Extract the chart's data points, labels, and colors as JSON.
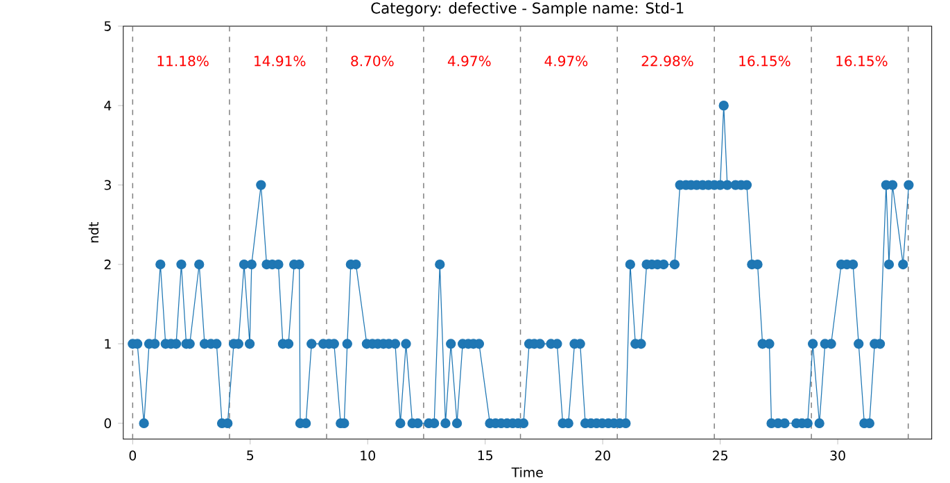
{
  "chart_data": {
    "type": "line",
    "title": "Category: defective - Sample name: Std-1",
    "xlabel": "Time",
    "ylabel": "ndt",
    "xlim": [
      -0.4,
      34.0
    ],
    "ylim": [
      -0.2,
      5
    ],
    "xticks": [
      0,
      5,
      10,
      15,
      20,
      25,
      30
    ],
    "yticks": [
      0,
      1,
      2,
      3,
      4,
      5
    ],
    "marker": "circle",
    "line_style": "solid",
    "series": [
      {
        "color": "#1f77b4",
        "x": [
          0,
          0.2,
          0.48,
          0.7,
          0.94,
          1.18,
          1.4,
          1.63,
          1.85,
          2.07,
          2.28,
          2.43,
          2.83,
          3.06,
          3.33,
          3.57,
          3.8,
          4.04,
          4.3,
          4.5,
          4.74,
          4.98,
          5.06,
          5.46,
          5.7,
          5.94,
          6.2,
          6.39,
          6.63,
          6.87,
          7.09,
          7.13,
          7.37,
          7.61,
          8.11,
          8.35,
          8.57,
          8.85,
          9.0,
          9.13,
          9.28,
          9.5,
          9.96,
          10.2,
          10.43,
          10.67,
          10.9,
          11.17,
          11.39,
          11.63,
          11.9,
          12.13,
          12.6,
          12.83,
          13.07,
          13.31,
          13.54,
          13.8,
          14.04,
          14.28,
          14.5,
          14.74,
          15.2,
          15.44,
          15.68,
          15.93,
          16.17,
          16.4,
          16.63,
          16.87,
          17.09,
          17.33,
          17.8,
          18.06,
          18.3,
          18.54,
          18.8,
          19.04,
          19.26,
          19.5,
          19.74,
          19.98,
          20.24,
          20.48,
          20.72,
          20.98,
          21.17,
          21.39,
          21.63,
          21.87,
          22.09,
          22.33,
          22.59,
          23.06,
          23.29,
          23.54,
          23.76,
          24.0,
          24.25,
          24.5,
          24.75,
          25.0,
          25.15,
          25.3,
          25.65,
          25.89,
          26.13,
          26.35,
          26.59,
          26.8,
          27.09,
          27.18,
          27.46,
          27.74,
          28.24,
          28.48,
          28.72,
          28.94,
          29.22,
          29.46,
          29.72,
          30.15,
          30.39,
          30.65,
          30.89,
          31.13,
          31.35,
          31.57,
          31.8,
          32.06,
          32.18,
          32.33,
          32.78,
          33.02
        ],
        "values": [
          1,
          1,
          0,
          1,
          1,
          2,
          1,
          1,
          1,
          2,
          1,
          1,
          2,
          1,
          1,
          1,
          0,
          0,
          1,
          1,
          2,
          1,
          2,
          3,
          2,
          2,
          2,
          1,
          1,
          2,
          2,
          0,
          0,
          1,
          1,
          1,
          1,
          0,
          0,
          1,
          2,
          2,
          1,
          1,
          1,
          1,
          1,
          1,
          0,
          1,
          0,
          0,
          0,
          0,
          2,
          0,
          1,
          0,
          1,
          1,
          1,
          1,
          0,
          0,
          0,
          0,
          0,
          0,
          0,
          1,
          1,
          1,
          1,
          1,
          0,
          0,
          1,
          1,
          0,
          0,
          0,
          0,
          0,
          0,
          0,
          0,
          2,
          1,
          1,
          2,
          2,
          2,
          2,
          2,
          3,
          3,
          3,
          3,
          3,
          3,
          3,
          3,
          4,
          3,
          3,
          3,
          3,
          2,
          2,
          1,
          1,
          0,
          0,
          0,
          0,
          0,
          0,
          1,
          0,
          1,
          1,
          2,
          2,
          2,
          1,
          0,
          0,
          1,
          1,
          3,
          2,
          3,
          2,
          3
        ]
      }
    ],
    "ref_lines": [
      {
        "axis": "x",
        "value": 0,
        "color": "#808080",
        "line_style": "dashed"
      },
      {
        "axis": "x",
        "value": 4.12,
        "color": "#808080",
        "line_style": "dashed"
      },
      {
        "axis": "x",
        "value": 8.25,
        "color": "#808080",
        "line_style": "dashed"
      },
      {
        "axis": "x",
        "value": 12.38,
        "color": "#808080",
        "line_style": "dashed"
      },
      {
        "axis": "x",
        "value": 16.5,
        "color": "#808080",
        "line_style": "dashed"
      },
      {
        "axis": "x",
        "value": 20.62,
        "color": "#808080",
        "line_style": "dashed"
      },
      {
        "axis": "x",
        "value": 24.75,
        "color": "#808080",
        "line_style": "dashed"
      },
      {
        "axis": "x",
        "value": 28.88,
        "color": "#808080",
        "line_style": "dashed"
      },
      {
        "axis": "x",
        "value": 33,
        "color": "#808080",
        "line_style": "dashed"
      }
    ],
    "annotations": [
      "11.18%",
      "14.91%",
      "8.70%",
      "4.97%",
      "4.97%",
      "22.98%",
      "16.15%",
      "16.15%"
    ]
  }
}
